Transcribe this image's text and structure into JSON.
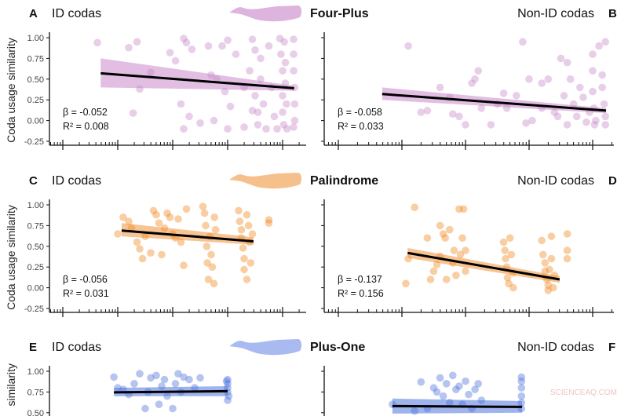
{
  "figure": {
    "ylabel": "Coda usage similarity",
    "y_ticks": [
      "1.00",
      "0.75",
      "0.50",
      "0.25",
      "0.00",
      "-0.25"
    ],
    "watermark": "SCIENCEAQ.COM"
  },
  "rows": [
    {
      "group": "Four-Plus",
      "whale_color": "#dcb4de"
    },
    {
      "group": "Palindrome",
      "whale_color": "#f6c08c"
    },
    {
      "group": "Plus-One",
      "whale_color": "#a9baf0"
    }
  ],
  "chart_data": [
    {
      "panel": "A",
      "title": "ID codas",
      "type": "scatter",
      "xscale": "log",
      "ylim": [
        -0.25,
        1.0
      ],
      "color": "#c98ac9",
      "band_color": "#d7a8d8",
      "annotation": {
        "beta": "β = -0.052",
        "r2": "R² = 0.008"
      },
      "points": [
        [
          0.63,
          0.94
        ],
        [
          1.2,
          0.88
        ],
        [
          1.35,
          0.95
        ],
        [
          1.4,
          0.38
        ],
        [
          1.28,
          0.09
        ],
        [
          1.6,
          0.58
        ],
        [
          1.95,
          0.82
        ],
        [
          2.05,
          0.72
        ],
        [
          2.2,
          0.99
        ],
        [
          2.25,
          0.94
        ],
        [
          2.35,
          0.86
        ],
        [
          2.15,
          0.2
        ],
        [
          2.2,
          -0.1
        ],
        [
          2.3,
          0.05
        ],
        [
          2.5,
          -0.03
        ],
        [
          2.65,
          0.9
        ],
        [
          2.7,
          0.55
        ],
        [
          2.75,
          0.0
        ],
        [
          2.9,
          0.9
        ],
        [
          2.95,
          0.35
        ],
        [
          3.0,
          -0.1
        ],
        [
          3.05,
          0.17
        ],
        [
          3.0,
          0.97
        ],
        [
          3.15,
          0.8
        ],
        [
          3.3,
          -0.08
        ],
        [
          3.4,
          0.6
        ],
        [
          3.45,
          0.98
        ],
        [
          3.5,
          0.85
        ],
        [
          3.5,
          0.3
        ],
        [
          3.55,
          0.1
        ],
        [
          3.55,
          -0.05
        ],
        [
          3.6,
          0.75
        ],
        [
          3.6,
          0.5
        ],
        [
          3.65,
          0.2
        ],
        [
          3.7,
          -0.1
        ],
        [
          3.75,
          0.9
        ],
        [
          3.8,
          0.4
        ],
        [
          3.85,
          0.05
        ],
        [
          3.95,
          0.99
        ],
        [
          3.97,
          0.8
        ],
        [
          4.0,
          0.6
        ],
        [
          4.0,
          0.3
        ],
        [
          4.0,
          0.1
        ],
        [
          4.02,
          -0.05
        ],
        [
          4.03,
          0.95
        ],
        [
          4.05,
          0.7
        ],
        [
          4.05,
          0.45
        ],
        [
          4.07,
          0.2
        ],
        [
          4.08,
          -0.1
        ],
        [
          4.2,
          0.98
        ],
        [
          4.2,
          0.8
        ],
        [
          4.2,
          0.6
        ],
        [
          4.22,
          0.4
        ],
        [
          4.22,
          0.2
        ],
        [
          4.22,
          0.0
        ],
        [
          4.2,
          -0.08
        ],
        [
          3.9,
          -0.1
        ],
        [
          3.45,
          0.12
        ],
        [
          3.3,
          0.4
        ],
        [
          2.8,
          0.5
        ]
      ],
      "fit": {
        "x": [
          0.69,
          4.21
        ],
        "y": [
          0.57,
          0.39
        ],
        "ci_lower": [
          0.4,
          0.36
        ],
        "ci_upper": [
          0.75,
          0.42
        ]
      }
    },
    {
      "panel": "B",
      "title": "Non-ID codas",
      "type": "scatter",
      "xscale": "log",
      "ylim": [
        -0.25,
        1.0
      ],
      "color": "#c98ac9",
      "band_color": "#d7a8d8",
      "annotation": {
        "beta": "β = -0.058",
        "r2": "R² = 0.033"
      },
      "points": [
        [
          1.1,
          0.9
        ],
        [
          1.3,
          0.1
        ],
        [
          1.4,
          0.12
        ],
        [
          1.6,
          0.4
        ],
        [
          1.75,
          0.28
        ],
        [
          1.8,
          0.08
        ],
        [
          1.9,
          0.05
        ],
        [
          2.0,
          -0.05
        ],
        [
          2.1,
          0.45
        ],
        [
          2.15,
          0.5
        ],
        [
          2.2,
          0.6
        ],
        [
          2.25,
          0.15
        ],
        [
          2.4,
          -0.05
        ],
        [
          2.5,
          0.2
        ],
        [
          2.6,
          0.33
        ],
        [
          2.65,
          0.15
        ],
        [
          2.8,
          0.3
        ],
        [
          2.9,
          0.95
        ],
        [
          2.95,
          -0.03
        ],
        [
          3.0,
          0.5
        ],
        [
          3.05,
          0.0
        ],
        [
          3.2,
          0.45
        ],
        [
          3.3,
          0.5
        ],
        [
          3.4,
          0.1
        ],
        [
          3.5,
          0.75
        ],
        [
          3.55,
          0.3
        ],
        [
          3.6,
          0.7
        ],
        [
          3.6,
          -0.05
        ],
        [
          3.65,
          0.5
        ],
        [
          3.7,
          0.2
        ],
        [
          3.75,
          0.05
        ],
        [
          3.8,
          0.4
        ],
        [
          3.9,
          -0.02
        ],
        [
          3.95,
          0.1
        ],
        [
          4.0,
          0.8
        ],
        [
          4.0,
          0.6
        ],
        [
          4.0,
          0.35
        ],
        [
          4.02,
          0.15
        ],
        [
          4.03,
          -0.05
        ],
        [
          4.05,
          0.0
        ],
        [
          4.1,
          0.9
        ],
        [
          4.15,
          0.4
        ],
        [
          4.18,
          0.2
        ],
        [
          4.2,
          0.05
        ],
        [
          4.2,
          -0.05
        ],
        [
          4.2,
          0.95
        ],
        [
          4.15,
          0.55
        ],
        [
          3.85,
          0.28
        ],
        [
          3.45,
          0.05
        ],
        [
          3.2,
          0.15
        ]
      ],
      "fit": {
        "x": [
          0.69,
          4.21
        ],
        "y": [
          0.32,
          0.12
        ],
        "ci_lower": [
          0.25,
          0.09
        ],
        "ci_upper": [
          0.4,
          0.15
        ]
      }
    },
    {
      "panel": "C",
      "title": "ID codas",
      "type": "scatter",
      "xscale": "log",
      "ylim": [
        -0.25,
        1.0
      ],
      "color": "#f08a24",
      "band_color": "#f4b070",
      "annotation": {
        "beta": "β = -0.056",
        "r2": "R² = 0.031"
      },
      "points": [
        [
          1.0,
          0.65
        ],
        [
          1.1,
          0.85
        ],
        [
          1.2,
          0.8
        ],
        [
          1.25,
          0.72
        ],
        [
          1.35,
          0.55
        ],
        [
          1.4,
          0.47
        ],
        [
          1.45,
          0.35
        ],
        [
          1.5,
          0.62
        ],
        [
          1.6,
          0.42
        ],
        [
          1.65,
          0.93
        ],
        [
          1.7,
          0.88
        ],
        [
          1.75,
          0.78
        ],
        [
          1.8,
          0.4
        ],
        [
          1.85,
          0.72
        ],
        [
          1.9,
          0.9
        ],
        [
          1.95,
          0.85
        ],
        [
          2.0,
          0.65
        ],
        [
          2.05,
          0.6
        ],
        [
          2.1,
          0.83
        ],
        [
          2.15,
          0.55
        ],
        [
          2.2,
          0.27
        ],
        [
          2.25,
          0.95
        ],
        [
          2.55,
          0.98
        ],
        [
          2.58,
          0.9
        ],
        [
          2.6,
          0.75
        ],
        [
          2.62,
          0.5
        ],
        [
          2.63,
          0.3
        ],
        [
          2.65,
          0.1
        ],
        [
          2.68,
          0.62
        ],
        [
          2.7,
          0.4
        ],
        [
          2.72,
          0.25
        ],
        [
          2.75,
          0.05
        ],
        [
          2.76,
          0.85
        ],
        [
          2.78,
          0.7
        ],
        [
          3.2,
          0.93
        ],
        [
          3.22,
          0.8
        ],
        [
          3.25,
          0.7
        ],
        [
          3.25,
          0.6
        ],
        [
          3.28,
          0.48
        ],
        [
          3.3,
          0.35
        ],
        [
          3.3,
          0.22
        ],
        [
          3.35,
          0.1
        ],
        [
          3.35,
          0.88
        ],
        [
          3.38,
          0.75
        ],
        [
          3.4,
          0.55
        ],
        [
          3.42,
          0.3
        ],
        [
          3.45,
          0.65
        ],
        [
          3.75,
          0.82
        ],
        [
          3.75,
          0.78
        ]
      ],
      "fit": {
        "x": [
          1.07,
          3.47
        ],
        "y": [
          0.69,
          0.56
        ],
        "ci_lower": [
          0.62,
          0.52
        ],
        "ci_upper": [
          0.78,
          0.61
        ]
      }
    },
    {
      "panel": "D",
      "title": "Non-ID codas",
      "type": "scatter",
      "xscale": "log",
      "ylim": [
        -0.25,
        1.0
      ],
      "color": "#f08a24",
      "band_color": "#f4b070",
      "annotation": {
        "beta": "β = -0.137",
        "r2": "R² = 0.156"
      },
      "points": [
        [
          1.06,
          0.05
        ],
        [
          1.1,
          0.35
        ],
        [
          1.2,
          0.97
        ],
        [
          1.4,
          0.6
        ],
        [
          1.45,
          0.1
        ],
        [
          1.5,
          0.2
        ],
        [
          1.55,
          0.28
        ],
        [
          1.6,
          0.38
        ],
        [
          1.6,
          0.75
        ],
        [
          1.65,
          0.65
        ],
        [
          1.68,
          0.6
        ],
        [
          1.7,
          0.1
        ],
        [
          1.75,
          0.7
        ],
        [
          1.8,
          0.3
        ],
        [
          1.82,
          0.45
        ],
        [
          1.85,
          0.15
        ],
        [
          1.9,
          0.95
        ],
        [
          1.92,
          0.4
        ],
        [
          1.95,
          0.6
        ],
        [
          1.97,
          0.95
        ],
        [
          2.0,
          0.45
        ],
        [
          2.0,
          0.2
        ],
        [
          2.6,
          0.55
        ],
        [
          2.62,
          0.45
        ],
        [
          2.63,
          0.35
        ],
        [
          2.65,
          0.25
        ],
        [
          2.66,
          0.12
        ],
        [
          2.68,
          0.05
        ],
        [
          2.7,
          0.6
        ],
        [
          2.72,
          0.4
        ],
        [
          2.75,
          0.18
        ],
        [
          2.75,
          0.0
        ],
        [
          3.2,
          0.57
        ],
        [
          3.22,
          0.4
        ],
        [
          3.25,
          0.3
        ],
        [
          3.25,
          0.2
        ],
        [
          3.28,
          0.1
        ],
        [
          3.3,
          0.03
        ],
        [
          3.3,
          -0.03
        ],
        [
          3.32,
          0.22
        ],
        [
          3.35,
          0.62
        ],
        [
          3.35,
          0.35
        ],
        [
          3.4,
          0.15
        ],
        [
          3.38,
          0.0
        ],
        [
          3.6,
          0.65
        ],
        [
          3.6,
          0.45
        ],
        [
          3.6,
          0.35
        ]
      ],
      "fit": {
        "x": [
          1.09,
          3.48
        ],
        "y": [
          0.42,
          0.1
        ],
        "ci_lower": [
          0.36,
          0.06
        ],
        "ci_upper": [
          0.48,
          0.14
        ]
      }
    },
    {
      "panel": "E",
      "title": "ID codas",
      "type": "scatter",
      "xscale": "log",
      "ylim": [
        -0.25,
        1.0
      ],
      "color": "#4f74db",
      "band_color": "#7f9ae6",
      "points": [
        [
          0.93,
          0.93
        ],
        [
          1.0,
          0.8
        ],
        [
          1.1,
          0.78
        ],
        [
          1.2,
          0.72
        ],
        [
          1.3,
          0.85
        ],
        [
          1.4,
          0.97
        ],
        [
          1.5,
          0.55
        ],
        [
          1.55,
          0.75
        ],
        [
          1.6,
          0.92
        ],
        [
          1.7,
          0.95
        ],
        [
          1.75,
          0.6
        ],
        [
          1.8,
          0.82
        ],
        [
          1.85,
          0.9
        ],
        [
          1.9,
          0.7
        ],
        [
          2.0,
          0.55
        ],
        [
          2.05,
          0.85
        ],
        [
          2.1,
          0.97
        ],
        [
          2.15,
          0.75
        ],
        [
          2.2,
          0.93
        ],
        [
          2.3,
          0.9
        ],
        [
          2.4,
          0.8
        ],
        [
          2.5,
          0.92
        ],
        [
          1.45,
          0.5
        ],
        [
          1.65,
          0.47
        ],
        [
          3.0,
          0.9
        ],
        [
          3.0,
          0.85
        ],
        [
          3.0,
          0.8
        ],
        [
          3.0,
          0.75
        ],
        [
          3.02,
          0.7
        ],
        [
          3.0,
          0.65
        ],
        [
          2.98,
          0.88
        ]
      ],
      "fit": {
        "x": [
          0.93,
          3.0
        ],
        "y": [
          0.745,
          0.76
        ],
        "ci_lower": [
          0.7,
          0.7
        ],
        "ci_upper": [
          0.8,
          0.82
        ]
      }
    },
    {
      "panel": "F",
      "title": "Non-ID codas",
      "type": "scatter",
      "xscale": "log",
      "ylim": [
        -0.25,
        1.0
      ],
      "color": "#4f74db",
      "band_color": "#7f9ae6",
      "points": [
        [
          0.85,
          0.6
        ],
        [
          0.9,
          0.48
        ],
        [
          1.3,
          0.87
        ],
        [
          1.5,
          0.8
        ],
        [
          1.55,
          0.75
        ],
        [
          1.6,
          0.92
        ],
        [
          1.65,
          0.7
        ],
        [
          1.7,
          0.85
        ],
        [
          1.75,
          0.62
        ],
        [
          1.8,
          0.95
        ],
        [
          1.85,
          0.78
        ],
        [
          1.9,
          0.82
        ],
        [
          1.95,
          0.6
        ],
        [
          2.0,
          0.88
        ],
        [
          2.05,
          0.72
        ],
        [
          2.1,
          0.55
        ],
        [
          2.15,
          0.78
        ],
        [
          2.2,
          0.85
        ],
        [
          2.25,
          0.65
        ],
        [
          1.4,
          0.55
        ],
        [
          1.2,
          0.52
        ],
        [
          2.88,
          0.93
        ],
        [
          2.88,
          0.88
        ],
        [
          2.88,
          0.8
        ],
        [
          2.88,
          0.7
        ],
        [
          2.88,
          0.62
        ],
        [
          2.88,
          0.55
        ],
        [
          2.88,
          0.5
        ]
      ],
      "fit": {
        "x": [
          0.85,
          2.89
        ],
        "y": [
          0.58,
          0.57
        ],
        "ci_lower": [
          0.49,
          0.5
        ],
        "ci_upper": [
          0.67,
          0.64
        ]
      }
    }
  ]
}
